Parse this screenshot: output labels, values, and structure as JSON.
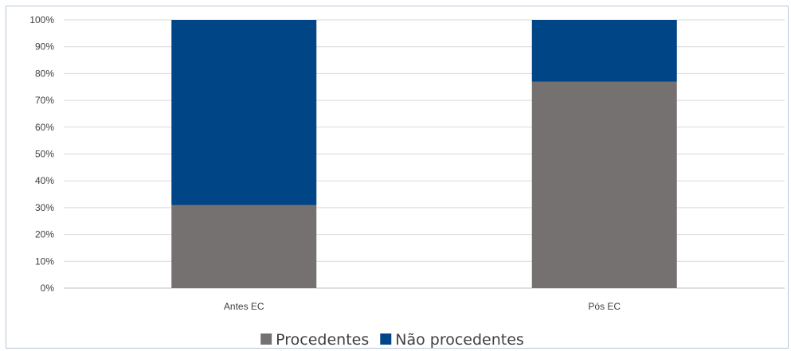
{
  "chart_data": {
    "type": "bar",
    "stacked": true,
    "categories": [
      "Antes EC",
      "Pós EC"
    ],
    "series": [
      {
        "name": "Procedentes",
        "values": [
          31,
          77
        ],
        "color": "#767171"
      },
      {
        "name": "Não procedentes",
        "values": [
          69,
          23
        ],
        "color": "#004586"
      }
    ],
    "ylim": [
      0,
      100
    ],
    "y_ticks": [
      "0%",
      "10%",
      "20%",
      "30%",
      "40%",
      "50%",
      "60%",
      "70%",
      "80%",
      "90%",
      "100%"
    ],
    "grid": true,
    "legend_position": "bottom"
  }
}
